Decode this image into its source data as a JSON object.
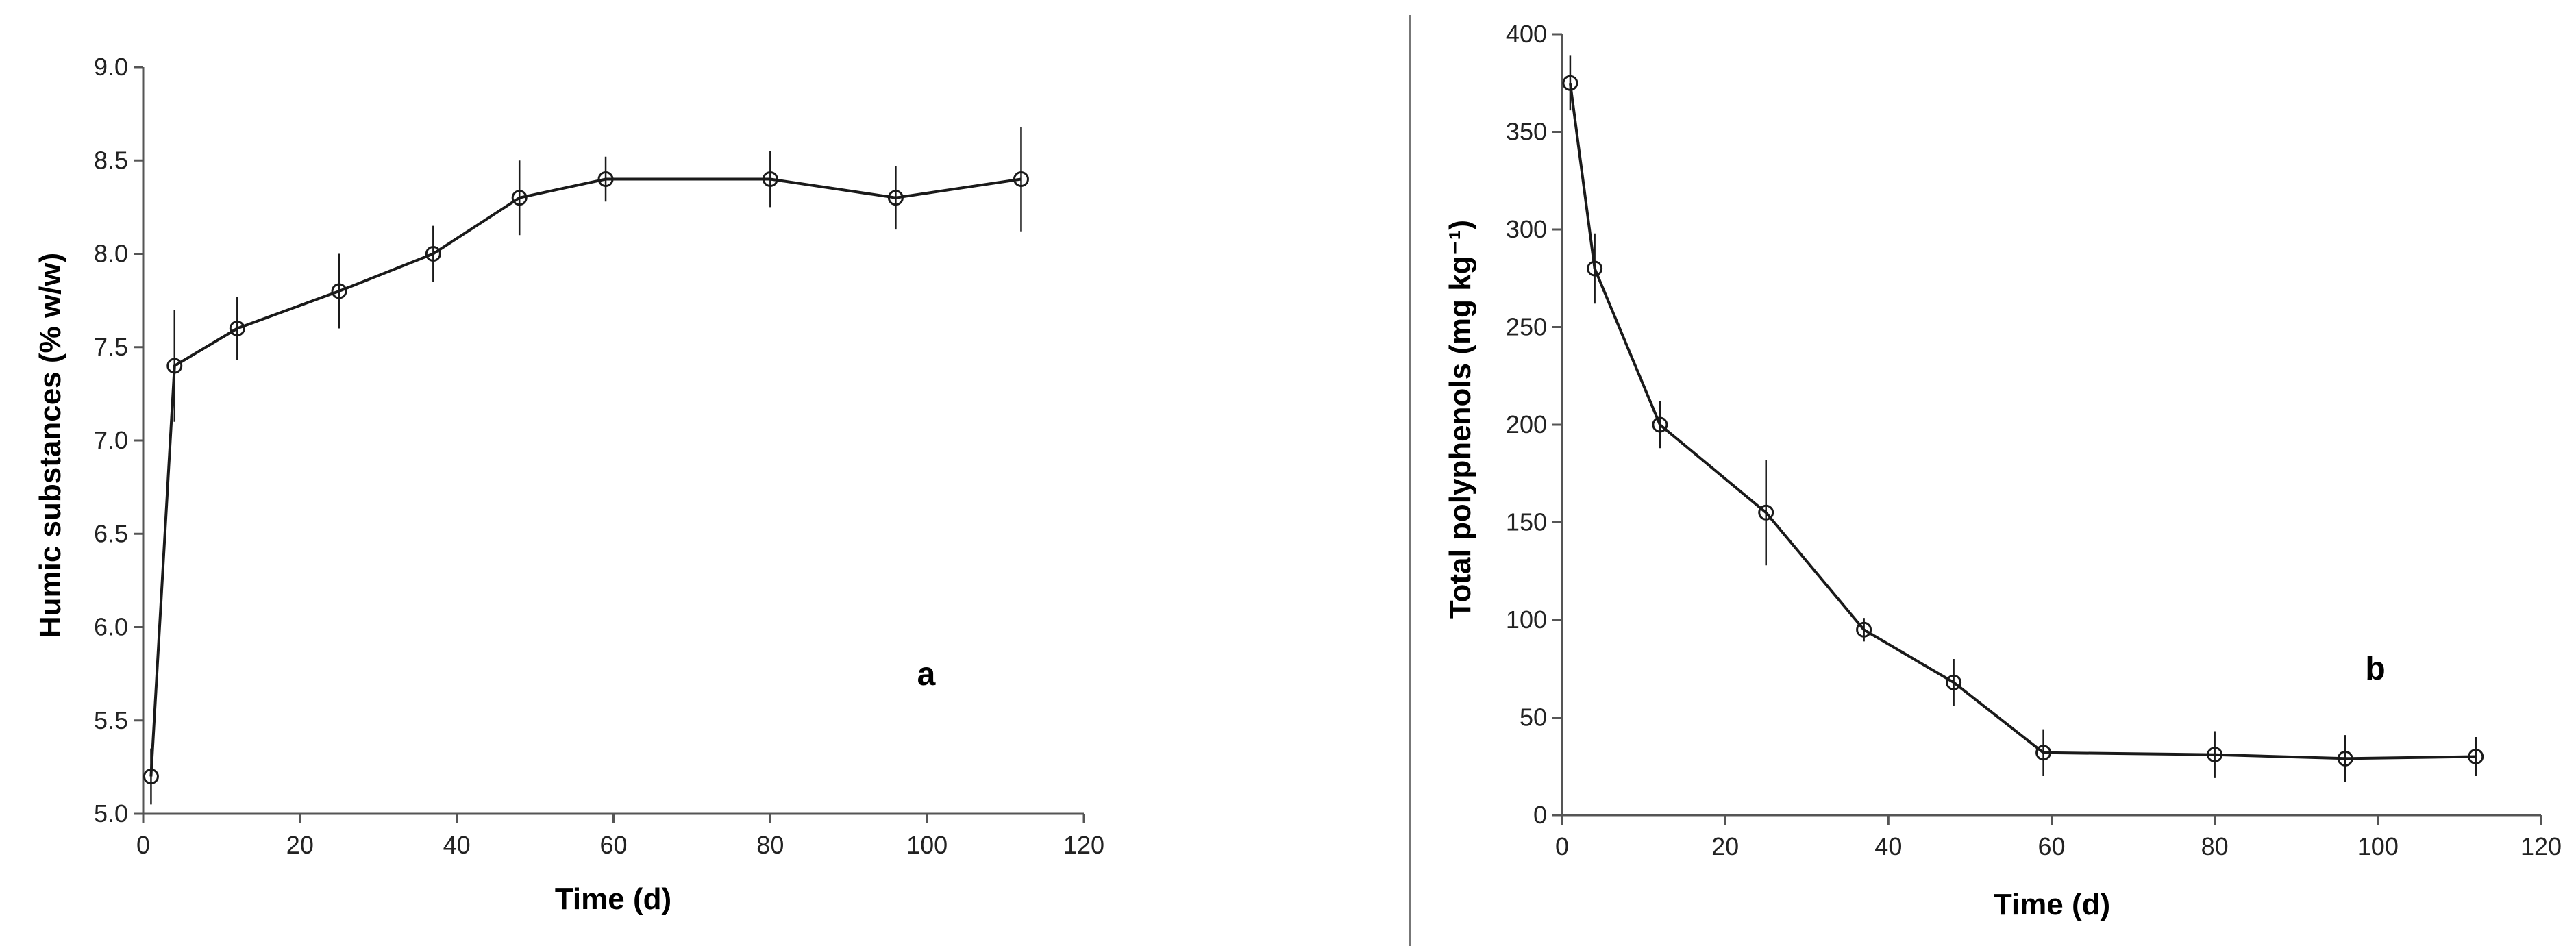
{
  "chart_data": [
    {
      "type": "line",
      "panel_label": "a",
      "xlabel": "Time (d)",
      "ylabel": "Humic substances (% w/w)",
      "xlim": [
        0,
        120
      ],
      "ylim": [
        5.0,
        9.0
      ],
      "xticks": [
        0,
        20,
        40,
        60,
        80,
        100,
        120
      ],
      "xtick_labels": [
        "0",
        "20",
        "40",
        "60",
        "80",
        "100",
        "120"
      ],
      "yticks": [
        5.0,
        5.5,
        6.0,
        6.5,
        7.0,
        7.5,
        8.0,
        8.5,
        9.0
      ],
      "ytick_labels": [
        "5.0",
        "5.5",
        "6.0",
        "6.5",
        "7.0",
        "7.5",
        "8.0",
        "8.5",
        "9.0"
      ],
      "grid": false,
      "series": [
        {
          "x": [
            1,
            4,
            12,
            25,
            37,
            48,
            59,
            80,
            96,
            112
          ],
          "y": [
            5.2,
            7.4,
            7.6,
            7.8,
            8.0,
            8.3,
            8.4,
            8.4,
            8.3,
            8.4
          ],
          "error": [
            0.15,
            0.3,
            0.17,
            0.2,
            0.15,
            0.2,
            0.12,
            0.15,
            0.17,
            0.28
          ]
        }
      ],
      "marker": "open-circle",
      "colors": {
        "line": "#1a1a1a",
        "axis": "#555555"
      }
    },
    {
      "type": "line",
      "panel_label": "b",
      "xlabel": "Time (d)",
      "ylabel": "Total polyphenols (mg kg⁻¹)",
      "xlim": [
        0,
        120
      ],
      "ylim": [
        0,
        400
      ],
      "xticks": [
        0,
        20,
        40,
        60,
        80,
        100,
        120
      ],
      "xtick_labels": [
        "0",
        "20",
        "40",
        "60",
        "80",
        "100",
        "120"
      ],
      "yticks": [
        0,
        50,
        100,
        150,
        200,
        250,
        300,
        350,
        400
      ],
      "ytick_labels": [
        "0",
        "50",
        "100",
        "150",
        "200",
        "250",
        "300",
        "350",
        "400"
      ],
      "grid": false,
      "series": [
        {
          "x": [
            1,
            4,
            12,
            25,
            37,
            48,
            59,
            80,
            96,
            112
          ],
          "y": [
            375,
            280,
            200,
            155,
            95,
            68,
            32,
            31,
            29,
            30
          ],
          "error": [
            14,
            18,
            12,
            27,
            6,
            12,
            12,
            12,
            12,
            10
          ]
        }
      ],
      "marker": "open-circle",
      "colors": {
        "line": "#1a1a1a",
        "axis": "#555555"
      }
    }
  ]
}
